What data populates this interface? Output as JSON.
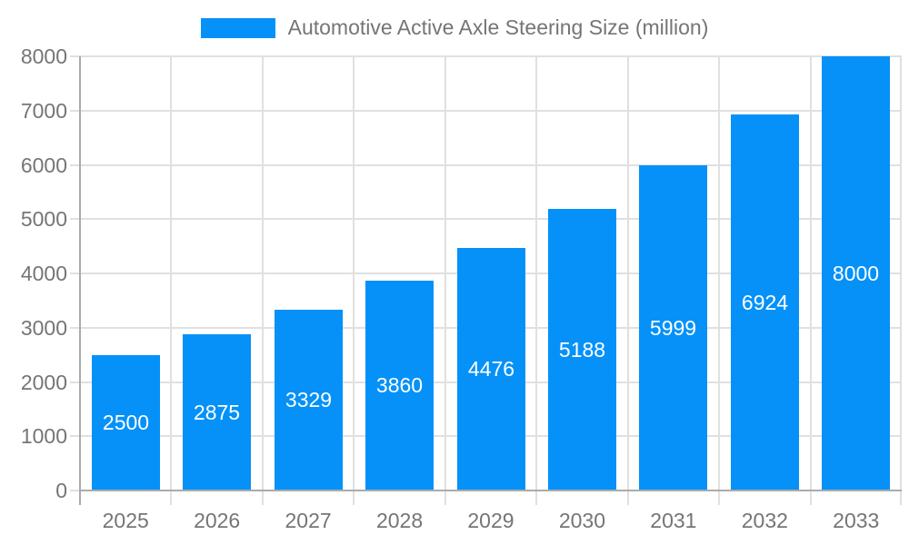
{
  "legend": {
    "label": "Automotive Active Axle Steering Size (million)"
  },
  "colors": {
    "bar": "#0591f8",
    "axis_text": "#757575",
    "grid": "#e0e0e0",
    "axis_line": "#ababab",
    "bar_label": "#ffffff",
    "background": "#ffffff"
  },
  "chart_data": {
    "type": "bar",
    "title": "Automotive Active Axle Steering Size (million)",
    "categories": [
      "2025",
      "2026",
      "2027",
      "2028",
      "2029",
      "2030",
      "2031",
      "2032",
      "2033"
    ],
    "values": [
      2500,
      2875,
      3329,
      3860,
      4476,
      5188,
      5999,
      6924,
      8000
    ],
    "series": [
      {
        "name": "Automotive Active Axle Steering Size (million)",
        "values": [
          2500,
          2875,
          3329,
          3860,
          4476,
          5188,
          5999,
          6924,
          8000
        ]
      }
    ],
    "xlabel": "",
    "ylabel": "",
    "ylim": [
      0,
      8000
    ],
    "yticks": [
      0,
      1000,
      2000,
      3000,
      4000,
      5000,
      6000,
      7000,
      8000
    ],
    "grid": true,
    "legend_position": "top",
    "bar_value_labels": true,
    "bar_label_position": "middle"
  }
}
